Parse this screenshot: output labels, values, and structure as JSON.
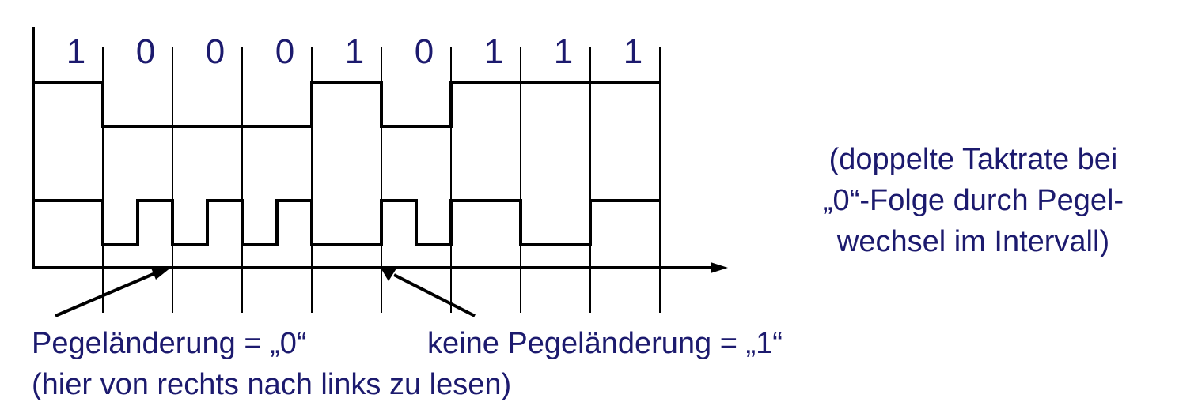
{
  "bits": [
    "1",
    "0",
    "0",
    "0",
    "1",
    "0",
    "1",
    "1",
    "1"
  ],
  "note": {
    "line1": "(doppelte Taktrate bei",
    "line2": "„0“-Folge durch Pegel-",
    "line3": "wechsel im Intervall)"
  },
  "label_zero": "Pegeländerung = „0“",
  "label_one": "keine Pegeländerung = „1“",
  "label_direction": "(hier von rechts nach links zu lesen)",
  "colors": {
    "text": "#1c1a6e",
    "lines": "#000000"
  }
}
